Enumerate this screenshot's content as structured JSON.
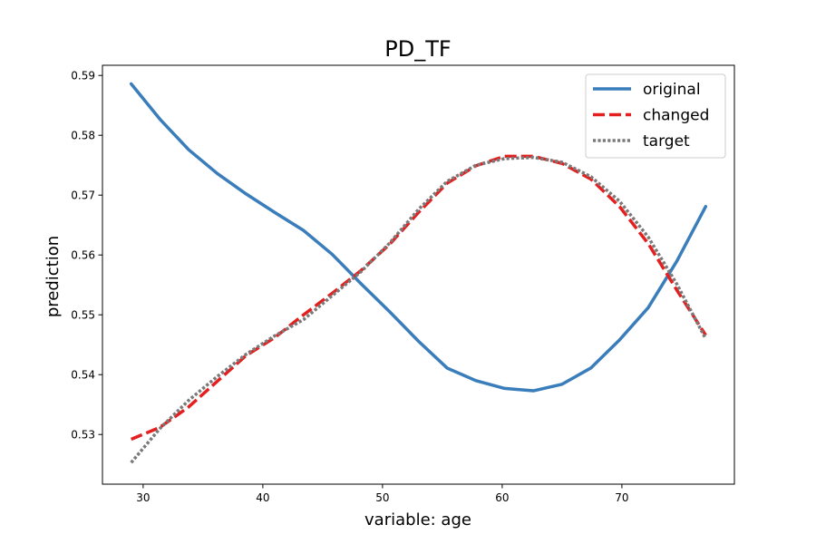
{
  "chart_data": {
    "type": "line",
    "title": "PD_TF",
    "xlabel": "variable: age",
    "ylabel": "prediction",
    "xlim": [
      26.6,
      79.4
    ],
    "ylim": [
      0.5217,
      0.5917
    ],
    "xticks": [
      30,
      40,
      50,
      60,
      70
    ],
    "yticks": [
      0.53,
      0.54,
      0.55,
      0.56,
      0.57,
      0.58,
      0.59
    ],
    "ytick_labels": [
      "0.53",
      "0.54",
      "0.55",
      "0.56",
      "0.57",
      "0.58",
      "0.59"
    ],
    "grid": false,
    "legend_position": "top-right",
    "x": [
      29,
      31.4,
      33.8,
      36.2,
      38.6,
      41,
      43.4,
      45.8,
      48.2,
      50.6,
      53,
      55.4,
      57.8,
      60.2,
      62.6,
      65,
      67.4,
      69.8,
      72.2,
      74.6,
      77
    ],
    "series": [
      {
        "name": "original",
        "color": "#3a7dbb",
        "style": "solid",
        "values": [
          0.5886,
          0.5827,
          0.5776,
          0.5736,
          0.5702,
          0.5671,
          0.5641,
          0.5601,
          0.5552,
          0.5505,
          0.5456,
          0.5411,
          0.539,
          0.5377,
          0.5373,
          0.5384,
          0.5411,
          0.5458,
          0.5512,
          0.559,
          0.5681
        ]
      },
      {
        "name": "changed",
        "color": "#e3201f",
        "style": "dashed",
        "values": [
          0.5292,
          0.5312,
          0.5346,
          0.5389,
          0.5432,
          0.5462,
          0.55,
          0.5536,
          0.5574,
          0.5618,
          0.5671,
          0.572,
          0.5749,
          0.5765,
          0.5765,
          0.5753,
          0.5727,
          0.5681,
          0.5619,
          0.5541,
          0.5466
        ]
      },
      {
        "name": "target",
        "color": "#7a7a7a",
        "style": "dotted",
        "values": [
          0.5253,
          0.531,
          0.5357,
          0.5397,
          0.5434,
          0.5465,
          0.5492,
          0.5532,
          0.5572,
          0.562,
          0.5676,
          0.5723,
          0.575,
          0.5761,
          0.5763,
          0.5755,
          0.5731,
          0.569,
          0.563,
          0.5551,
          0.546
        ]
      }
    ]
  }
}
